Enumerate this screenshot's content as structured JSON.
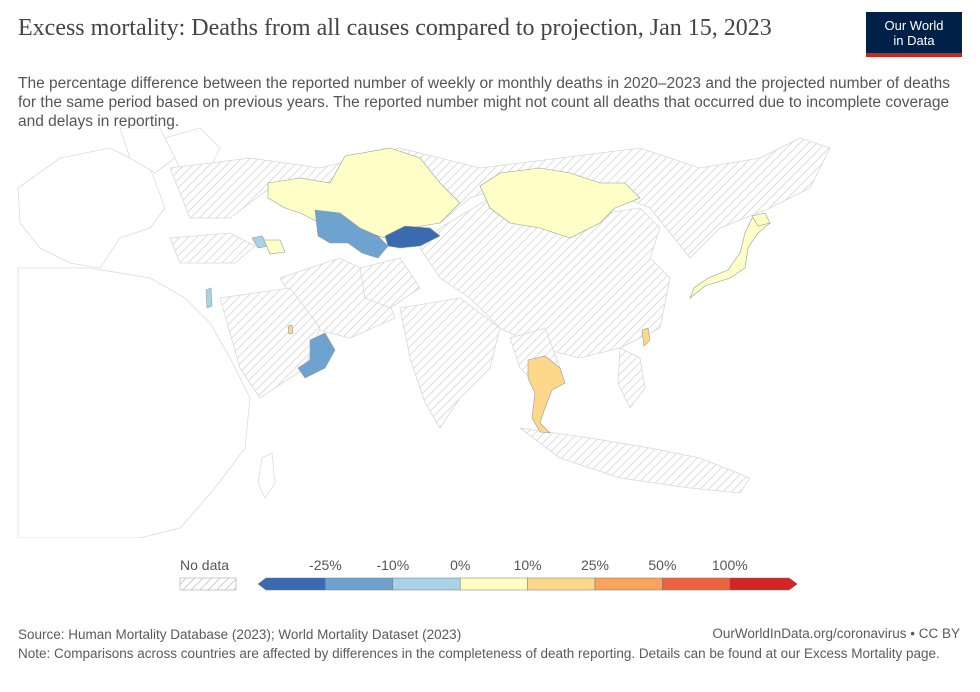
{
  "header": {
    "title": "Excess mortality: Deaths from all causes compared to projection, Jan 15, 2023",
    "subtitle": "The percentage difference between the reported number of weekly or monthly deaths in 2020–2023 and the projected number of deaths for the same period based on previous years. The reported number might not count all deaths that occurred due to incomplete coverage and delays in reporting.",
    "logo_line1": "Our World",
    "logo_line2": "in Data"
  },
  "colors": {
    "no_data_hatch": "#cccccc",
    "land_outline": "#dddddd",
    "bins": [
      "#3a6bb0",
      "#6ea3d0",
      "#a8d2e8",
      "#fefec6",
      "#fdd88a",
      "#f9a35c",
      "#ec6340",
      "#d42424"
    ]
  },
  "legend": {
    "no_data_label": "No data",
    "ticks": [
      "-25%",
      "-10%",
      "0%",
      "10%",
      "25%",
      "50%",
      "100%"
    ]
  },
  "map_data": {
    "date": "Jan 15, 2023",
    "regions": [
      {
        "name": "Kazakhstan",
        "bin": "0% to 10%"
      },
      {
        "name": "Mongolia",
        "bin": "0% to 10%"
      },
      {
        "name": "Uzbekistan",
        "bin": "-25% to -10%"
      },
      {
        "name": "Kyrgyzstan",
        "bin": "below -25%"
      },
      {
        "name": "Georgia",
        "bin": "-10% to 0%"
      },
      {
        "name": "Armenia",
        "bin": "0% to 10%"
      },
      {
        "name": "Azerbaijan",
        "bin": "0% to 10%"
      },
      {
        "name": "Israel",
        "bin": "-10% to 0%"
      },
      {
        "name": "Qatar",
        "bin": "10% to 25%"
      },
      {
        "name": "Oman",
        "bin": "-25% to -10%"
      },
      {
        "name": "Thailand",
        "bin": "10% to 25%"
      },
      {
        "name": "Taiwan",
        "bin": "10% to 25%"
      },
      {
        "name": "Japan",
        "bin": "0% to 10%"
      }
    ]
  },
  "footer": {
    "source": "Source: Human Mortality Database (2023); World Mortality Dataset (2023)",
    "credit": "OurWorldInData.org/coronavirus • CC BY",
    "note": "Note: Comparisons across countries are affected by differences in the completeness of death reporting. Details can be found at our Excess Mortality page."
  }
}
